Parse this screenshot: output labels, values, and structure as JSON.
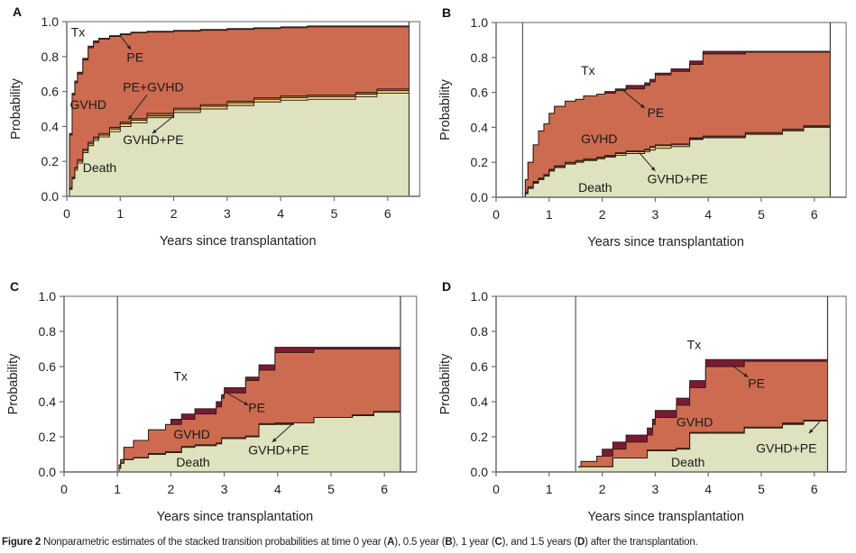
{
  "caption": {
    "label": "Figure 2",
    "parts": [
      " Nonparametric estimates of the stacked transition probabilities at time 0 year (",
      "A",
      "), 0.5 year (",
      "B",
      "), 1 year (",
      "C",
      "), and 1.5 years (",
      "D",
      ") after the transplantation."
    ]
  },
  "colors": {
    "Death": "#dfe2be",
    "GVHD+PE": "#f0cf7c",
    "PE+GVHD": "#a5683d",
    "GVHD": "#cd6b50",
    "PE": "#7b1a33",
    "Tx": "#ffffff"
  },
  "chart_data": [
    {
      "panel": "A",
      "type": "area",
      "title": "",
      "xlabel": "Years since transplantation",
      "ylabel": "Probability",
      "xlim": [
        0,
        6.6
      ],
      "ylim": [
        0,
        1.0
      ],
      "xticks": [
        "0",
        "1",
        "2",
        "3",
        "4",
        "5",
        "6"
      ],
      "yticks": [
        "0.0",
        "0.2",
        "0.4",
        "0.6",
        "0.8",
        "1.0"
      ],
      "landmark_time": 0,
      "end_time": 6.4,
      "stack_order": [
        "Death",
        "GVHD+PE",
        "PE+GVHD",
        "GVHD",
        "PE"
      ],
      "cumulative_boundaries": {
        "t": [
          0,
          0.05,
          0.1,
          0.15,
          0.2,
          0.3,
          0.4,
          0.5,
          0.6,
          0.8,
          1.0,
          1.2,
          1.5,
          2.0,
          2.5,
          3.0,
          3.5,
          4.0,
          4.5,
          5.0,
          5.4,
          5.8,
          6.4
        ],
        "Death": [
          0,
          0.04,
          0.1,
          0.15,
          0.19,
          0.25,
          0.29,
          0.32,
          0.34,
          0.37,
          0.4,
          0.42,
          0.45,
          0.48,
          0.5,
          0.52,
          0.54,
          0.55,
          0.555,
          0.555,
          0.57,
          0.59,
          0.59
        ],
        "GVHD+PE": [
          0,
          0.045,
          0.105,
          0.16,
          0.2,
          0.26,
          0.3,
          0.33,
          0.35,
          0.385,
          0.415,
          0.435,
          0.46,
          0.495,
          0.515,
          0.535,
          0.555,
          0.565,
          0.57,
          0.57,
          0.585,
          0.605,
          0.605
        ],
        "PE+GVHD": [
          0,
          0.05,
          0.11,
          0.165,
          0.21,
          0.27,
          0.31,
          0.34,
          0.36,
          0.395,
          0.425,
          0.445,
          0.475,
          0.505,
          0.525,
          0.545,
          0.565,
          0.575,
          0.58,
          0.58,
          0.595,
          0.615,
          0.615
        ],
        "GVHD": [
          0,
          0.35,
          0.58,
          0.65,
          0.7,
          0.78,
          0.85,
          0.88,
          0.9,
          0.915,
          0.925,
          0.935,
          0.94,
          0.945,
          0.95,
          0.955,
          0.96,
          0.965,
          0.97,
          0.97,
          0.97,
          0.97,
          0.97
        ],
        "PE": [
          0,
          0.36,
          0.59,
          0.66,
          0.71,
          0.79,
          0.86,
          0.89,
          0.905,
          0.92,
          0.93,
          0.94,
          0.945,
          0.95,
          0.955,
          0.96,
          0.965,
          0.97,
          0.975,
          0.975,
          0.975,
          0.975,
          0.975
        ]
      },
      "annotations": [
        {
          "text": "Tx",
          "x": 0.08,
          "y": 0.915
        },
        {
          "text": "PE",
          "x": 1.12,
          "y": 0.77
        },
        {
          "text": "PE+GVHD",
          "x": 1.05,
          "y": 0.6
        },
        {
          "text": "GVHD",
          "x": 0.06,
          "y": 0.5
        },
        {
          "text": "GVHD+PE",
          "x": 1.05,
          "y": 0.3
        },
        {
          "text": "Death",
          "x": 0.3,
          "y": 0.14
        }
      ],
      "arrows": [
        {
          "from": [
            1.0,
            0.92
          ],
          "to": [
            1.2,
            0.84
          ]
        },
        {
          "from": [
            1.5,
            0.58
          ],
          "to": [
            1.15,
            0.44
          ]
        },
        {
          "from": [
            2.0,
            0.46
          ],
          "to": [
            1.6,
            0.36
          ]
        }
      ]
    },
    {
      "panel": "B",
      "type": "area",
      "title": "",
      "xlabel": "Years since transplantation",
      "ylabel": "Probability",
      "xlim": [
        0,
        6.6
      ],
      "ylim": [
        0,
        1.0
      ],
      "xticks": [
        "0",
        "1",
        "2",
        "3",
        "4",
        "5",
        "6"
      ],
      "yticks": [
        "0.0",
        "0.2",
        "0.4",
        "0.6",
        "0.8",
        "1.0"
      ],
      "landmark_time": 0.5,
      "end_time": 6.3,
      "stack_order": [
        "Death",
        "GVHD+PE",
        "PE+GVHD",
        "GVHD",
        "PE"
      ],
      "cumulative_boundaries": {
        "t": [
          0.5,
          0.55,
          0.6,
          0.7,
          0.8,
          0.9,
          1.0,
          1.1,
          1.3,
          1.5,
          1.65,
          1.9,
          2.05,
          2.25,
          2.45,
          2.8,
          2.9,
          3.0,
          3.3,
          3.65,
          3.9,
          4.7,
          5.4,
          5.8,
          6.3
        ],
        "Death": [
          0,
          0.02,
          0.05,
          0.08,
          0.1,
          0.12,
          0.15,
          0.17,
          0.19,
          0.2,
          0.21,
          0.22,
          0.23,
          0.24,
          0.25,
          0.26,
          0.27,
          0.28,
          0.29,
          0.33,
          0.34,
          0.36,
          0.38,
          0.4,
          0.4
        ],
        "GVHD+PE": [
          0,
          0.025,
          0.055,
          0.085,
          0.105,
          0.125,
          0.155,
          0.175,
          0.195,
          0.205,
          0.215,
          0.225,
          0.235,
          0.25,
          0.26,
          0.27,
          0.285,
          0.295,
          0.3,
          0.335,
          0.345,
          0.365,
          0.385,
          0.405,
          0.405
        ],
        "PE+GVHD": [
          0,
          0.03,
          0.06,
          0.09,
          0.11,
          0.13,
          0.16,
          0.18,
          0.2,
          0.21,
          0.22,
          0.23,
          0.24,
          0.255,
          0.265,
          0.275,
          0.29,
          0.3,
          0.305,
          0.34,
          0.35,
          0.37,
          0.39,
          0.41,
          0.41
        ],
        "GVHD": [
          0,
          0.1,
          0.2,
          0.3,
          0.38,
          0.42,
          0.48,
          0.52,
          0.55,
          0.56,
          0.58,
          0.59,
          0.595,
          0.61,
          0.62,
          0.64,
          0.66,
          0.7,
          0.72,
          0.76,
          0.82,
          0.83,
          0.83,
          0.83,
          0.83
        ],
        "PE": [
          0,
          0.1,
          0.2,
          0.3,
          0.38,
          0.42,
          0.48,
          0.52,
          0.55,
          0.56,
          0.58,
          0.59,
          0.605,
          0.62,
          0.64,
          0.655,
          0.675,
          0.71,
          0.735,
          0.78,
          0.835,
          0.835,
          0.835,
          0.835,
          0.835
        ]
      },
      "annotations": [
        {
          "text": "Tx",
          "x": 1.6,
          "y": 0.7
        },
        {
          "text": "PE",
          "x": 2.85,
          "y": 0.46
        },
        {
          "text": "GVHD",
          "x": 1.6,
          "y": 0.31
        },
        {
          "text": "GVHD+PE",
          "x": 2.85,
          "y": 0.08
        },
        {
          "text": "Death",
          "x": 1.55,
          "y": 0.03
        }
      ],
      "arrows": [
        {
          "from": [
            2.4,
            0.61
          ],
          "to": [
            2.8,
            0.51
          ]
        },
        {
          "from": [
            2.7,
            0.255
          ],
          "to": [
            3.0,
            0.15
          ]
        }
      ]
    },
    {
      "panel": "C",
      "type": "area",
      "title": "",
      "xlabel": "Years since transplantation",
      "ylabel": "Probability",
      "xlim": [
        0,
        6.6
      ],
      "ylim": [
        0,
        1.0
      ],
      "xticks": [
        "0",
        "1",
        "2",
        "3",
        "4",
        "5",
        "6"
      ],
      "yticks": [
        "0.0",
        "0.2",
        "0.4",
        "0.6",
        "0.8",
        "1.0"
      ],
      "landmark_time": 1.0,
      "end_time": 6.3,
      "stack_order": [
        "Death",
        "GVHD+PE",
        "PE+GVHD",
        "GVHD",
        "PE"
      ],
      "cumulative_boundaries": {
        "t": [
          1.0,
          1.03,
          1.06,
          1.12,
          1.3,
          1.58,
          1.9,
          2.0,
          2.2,
          2.45,
          2.85,
          2.95,
          3.0,
          3.4,
          3.65,
          3.95,
          4.3,
          4.68,
          5.4,
          5.8,
          6.3
        ],
        "Death": [
          0,
          0.02,
          0.05,
          0.07,
          0.08,
          0.1,
          0.11,
          0.11,
          0.14,
          0.15,
          0.16,
          0.19,
          0.19,
          0.2,
          0.27,
          0.27,
          0.28,
          0.31,
          0.32,
          0.34,
          0.34
        ],
        "GVHD+PE": [
          0,
          0.02,
          0.05,
          0.07,
          0.08,
          0.1,
          0.11,
          0.11,
          0.14,
          0.15,
          0.16,
          0.19,
          0.19,
          0.2,
          0.27,
          0.275,
          0.28,
          0.31,
          0.32,
          0.34,
          0.34
        ],
        "PE+GVHD": [
          0,
          0.022,
          0.052,
          0.072,
          0.082,
          0.105,
          0.115,
          0.115,
          0.145,
          0.155,
          0.165,
          0.195,
          0.195,
          0.205,
          0.275,
          0.28,
          0.28,
          0.31,
          0.325,
          0.345,
          0.345
        ],
        "GVHD": [
          0,
          0.04,
          0.07,
          0.14,
          0.18,
          0.24,
          0.27,
          0.27,
          0.3,
          0.33,
          0.37,
          0.42,
          0.45,
          0.52,
          0.58,
          0.68,
          0.68,
          0.7,
          0.7,
          0.7,
          0.7
        ],
        "PE": [
          0,
          0.04,
          0.07,
          0.14,
          0.18,
          0.24,
          0.27,
          0.3,
          0.33,
          0.36,
          0.4,
          0.44,
          0.48,
          0.54,
          0.61,
          0.71,
          0.71,
          0.71,
          0.71,
          0.71,
          0.71
        ]
      },
      "annotations": [
        {
          "text": "Tx",
          "x": 2.05,
          "y": 0.52
        },
        {
          "text": "PE",
          "x": 3.45,
          "y": 0.34
        },
        {
          "text": "GVHD",
          "x": 2.05,
          "y": 0.19
        },
        {
          "text": "GVHD+PE",
          "x": 3.45,
          "y": 0.1
        },
        {
          "text": "Death",
          "x": 2.1,
          "y": 0.03
        }
      ],
      "arrows": [
        {
          "from": [
            3.05,
            0.45
          ],
          "to": [
            3.45,
            0.38
          ]
        },
        {
          "from": [
            4.3,
            0.28
          ],
          "to": [
            3.9,
            0.17
          ]
        }
      ]
    },
    {
      "panel": "D",
      "type": "area",
      "title": "",
      "xlabel": "Years since transplantation",
      "ylabel": "Probability",
      "xlim": [
        0,
        6.6
      ],
      "ylim": [
        0,
        1.0
      ],
      "xticks": [
        "0",
        "1",
        "2",
        "3",
        "4",
        "5",
        "6"
      ],
      "yticks": [
        "0.0",
        "0.2",
        "0.4",
        "0.6",
        "0.8",
        "1.0"
      ],
      "landmark_time": 1.5,
      "end_time": 6.25,
      "stack_order": [
        "Death",
        "GVHD+PE",
        "PE+GVHD",
        "GVHD",
        "PE"
      ],
      "cumulative_boundaries": {
        "t": [
          1.55,
          1.6,
          1.9,
          2.0,
          2.2,
          2.45,
          2.85,
          2.95,
          3.0,
          3.4,
          3.65,
          3.95,
          4.3,
          4.68,
          5.4,
          5.8,
          6.25
        ],
        "Death": [
          0.03,
          0.03,
          0.03,
          0.03,
          0.08,
          0.08,
          0.12,
          0.12,
          0.12,
          0.13,
          0.22,
          0.22,
          0.22,
          0.25,
          0.27,
          0.29,
          0.29
        ],
        "GVHD+PE": [
          0.03,
          0.03,
          0.03,
          0.03,
          0.08,
          0.08,
          0.12,
          0.12,
          0.12,
          0.13,
          0.22,
          0.225,
          0.225,
          0.255,
          0.275,
          0.29,
          0.29
        ],
        "PE+GVHD": [
          0.03,
          0.03,
          0.03,
          0.03,
          0.08,
          0.08,
          0.125,
          0.125,
          0.125,
          0.135,
          0.225,
          0.225,
          0.225,
          0.255,
          0.28,
          0.295,
          0.295
        ],
        "GVHD": [
          0.03,
          0.06,
          0.09,
          0.09,
          0.13,
          0.17,
          0.21,
          0.27,
          0.31,
          0.38,
          0.48,
          0.6,
          0.6,
          0.63,
          0.63,
          0.63,
          0.63
        ],
        "PE": [
          0.03,
          0.06,
          0.09,
          0.13,
          0.17,
          0.21,
          0.25,
          0.3,
          0.35,
          0.42,
          0.52,
          0.64,
          0.64,
          0.64,
          0.64,
          0.64,
          0.64
        ]
      },
      "annotations": [
        {
          "text": "Tx",
          "x": 3.6,
          "y": 0.7
        },
        {
          "text": "PE",
          "x": 4.75,
          "y": 0.48
        },
        {
          "text": "GVHD",
          "x": 3.4,
          "y": 0.26
        },
        {
          "text": "GVHD+PE",
          "x": 4.9,
          "y": 0.11
        },
        {
          "text": "Death",
          "x": 3.3,
          "y": 0.03
        }
      ],
      "arrows": [
        {
          "from": [
            4.45,
            0.605
          ],
          "to": [
            4.75,
            0.54
          ]
        },
        {
          "from": [
            6.1,
            0.285
          ],
          "to": [
            5.9,
            0.22
          ]
        }
      ]
    }
  ]
}
